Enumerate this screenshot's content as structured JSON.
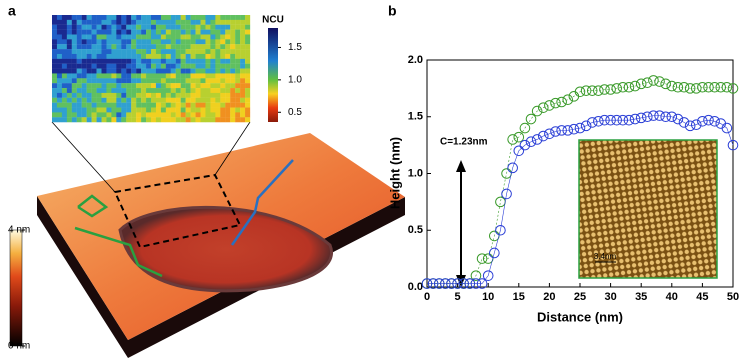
{
  "panel_a": {
    "label": "a",
    "ncu_colorbar": {
      "title": "NCU",
      "lim": [
        0.35,
        1.8
      ],
      "ticks": [
        1.5,
        {
          "value": 1,
          "label": "1.0"
        },
        0.5
      ]
    },
    "height_colorbar": {
      "lim": [
        0,
        4
      ],
      "ticks": [
        {
          "value": 4,
          "label": "4 nm"
        },
        {
          "value": 0,
          "label": "0 nm"
        }
      ]
    }
  },
  "chart_data": {
    "type": "scatter",
    "label": "b",
    "x_label": "Distance (nm)",
    "y_label": "Height (nm)",
    "annotation": "C=1.23nm",
    "inset_scale": "3.4nm",
    "x": [
      0,
      1,
      2,
      3,
      4,
      5,
      6,
      7,
      8,
      9,
      10,
      11,
      12,
      13,
      14,
      15,
      16,
      17,
      18,
      19,
      20,
      21,
      22,
      23,
      24,
      25,
      26,
      27,
      28,
      29,
      30,
      31,
      32,
      33,
      34,
      35,
      36,
      37,
      38,
      39,
      40,
      41,
      42,
      43,
      44,
      45,
      46,
      47,
      48,
      49,
      50
    ],
    "series": [
      {
        "color": "#3a9a2a",
        "values": [
          0.03,
          0.03,
          0.03,
          0.03,
          0.03,
          0.03,
          0.03,
          0.03,
          0.1,
          0.25,
          0.25,
          0.45,
          0.75,
          1.0,
          1.3,
          1.32,
          1.4,
          1.48,
          1.55,
          1.58,
          1.6,
          1.62,
          1.63,
          1.65,
          1.68,
          1.72,
          1.73,
          1.73,
          1.73,
          1.74,
          1.74,
          1.75,
          1.76,
          1.76,
          1.77,
          1.79,
          1.8,
          1.82,
          1.81,
          1.79,
          1.77,
          1.76,
          1.76,
          1.75,
          1.75,
          1.76,
          1.76,
          1.76,
          1.76,
          1.76,
          1.75
        ]
      },
      {
        "color": "#2b3fd6",
        "values": [
          0.03,
          0.03,
          0.03,
          0.03,
          0.03,
          0.03,
          0.03,
          0.03,
          0.03,
          0.03,
          0.1,
          0.3,
          0.5,
          0.82,
          1.05,
          1.2,
          1.25,
          1.28,
          1.3,
          1.33,
          1.35,
          1.37,
          1.38,
          1.38,
          1.39,
          1.4,
          1.42,
          1.45,
          1.46,
          1.47,
          1.47,
          1.47,
          1.47,
          1.47,
          1.48,
          1.49,
          1.5,
          1.51,
          1.51,
          1.5,
          1.5,
          1.48,
          1.45,
          1.42,
          1.43,
          1.46,
          1.47,
          1.46,
          1.44,
          1.4,
          1.25
        ]
      }
    ],
    "xlim": [
      0,
      50
    ],
    "ylim": [
      0,
      2
    ],
    "xticks": [
      0,
      5,
      10,
      15,
      20,
      25,
      30,
      35,
      40,
      45,
      50
    ],
    "yticks": [
      {
        "value": 0,
        "label": "0.0"
      },
      0.5,
      {
        "value": 1,
        "label": "1.0"
      },
      1.5,
      {
        "value": 2,
        "label": "2.0"
      }
    ]
  }
}
